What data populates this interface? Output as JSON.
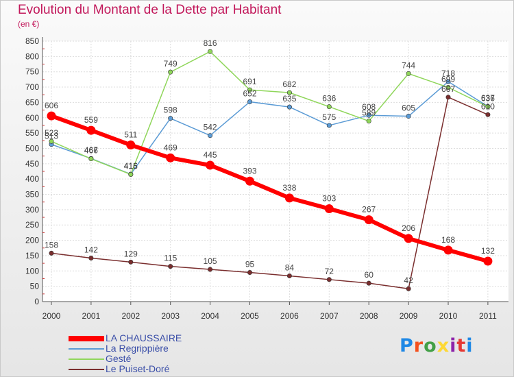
{
  "title": "Evolution du Montant de la Dette par Habitant",
  "subtitle": "(en €)",
  "logo": {
    "text": "Proxiti",
    "letter_colors": [
      "#1e88e5",
      "#f4511e",
      "#43a047",
      "#fdd835",
      "#8e24aa",
      "#e53935",
      "#1e88e5"
    ]
  },
  "chart_data": {
    "type": "line",
    "title": "Evolution du Montant de la Dette par Habitant",
    "subtitle": "(en €)",
    "categories": [
      "2000",
      "2001",
      "2002",
      "2003",
      "2004",
      "2005",
      "2006",
      "2007",
      "2008",
      "2009",
      "2010",
      "2011"
    ],
    "ylim": [
      0,
      850
    ],
    "yticks": [
      0,
      50,
      100,
      150,
      200,
      250,
      300,
      350,
      400,
      450,
      500,
      550,
      600,
      650,
      700,
      750,
      800,
      850
    ],
    "grid": true,
    "legend_position": "bottom-left",
    "series": [
      {
        "name": "LA CHAUSSAIRE",
        "color": "#ff0000",
        "values": [
          606,
          559,
          511,
          469,
          445,
          393,
          338,
          303,
          267,
          206,
          168,
          132
        ]
      },
      {
        "name": "La Regrippière",
        "color": "#5b9bd5",
        "values": [
          513,
          467,
          416,
          598,
          542,
          652,
          635,
          575,
          608,
          605,
          718,
          637
        ]
      },
      {
        "name": "Gesté",
        "color": "#8fd65a",
        "values": [
          523,
          466,
          415,
          749,
          816,
          691,
          682,
          636,
          589,
          744,
          699,
          636
        ]
      },
      {
        "name": "Le Puiset-Doré",
        "color": "#7a2e2e",
        "values": [
          158,
          142,
          129,
          115,
          105,
          95,
          84,
          72,
          60,
          42,
          667,
          610
        ]
      }
    ]
  }
}
